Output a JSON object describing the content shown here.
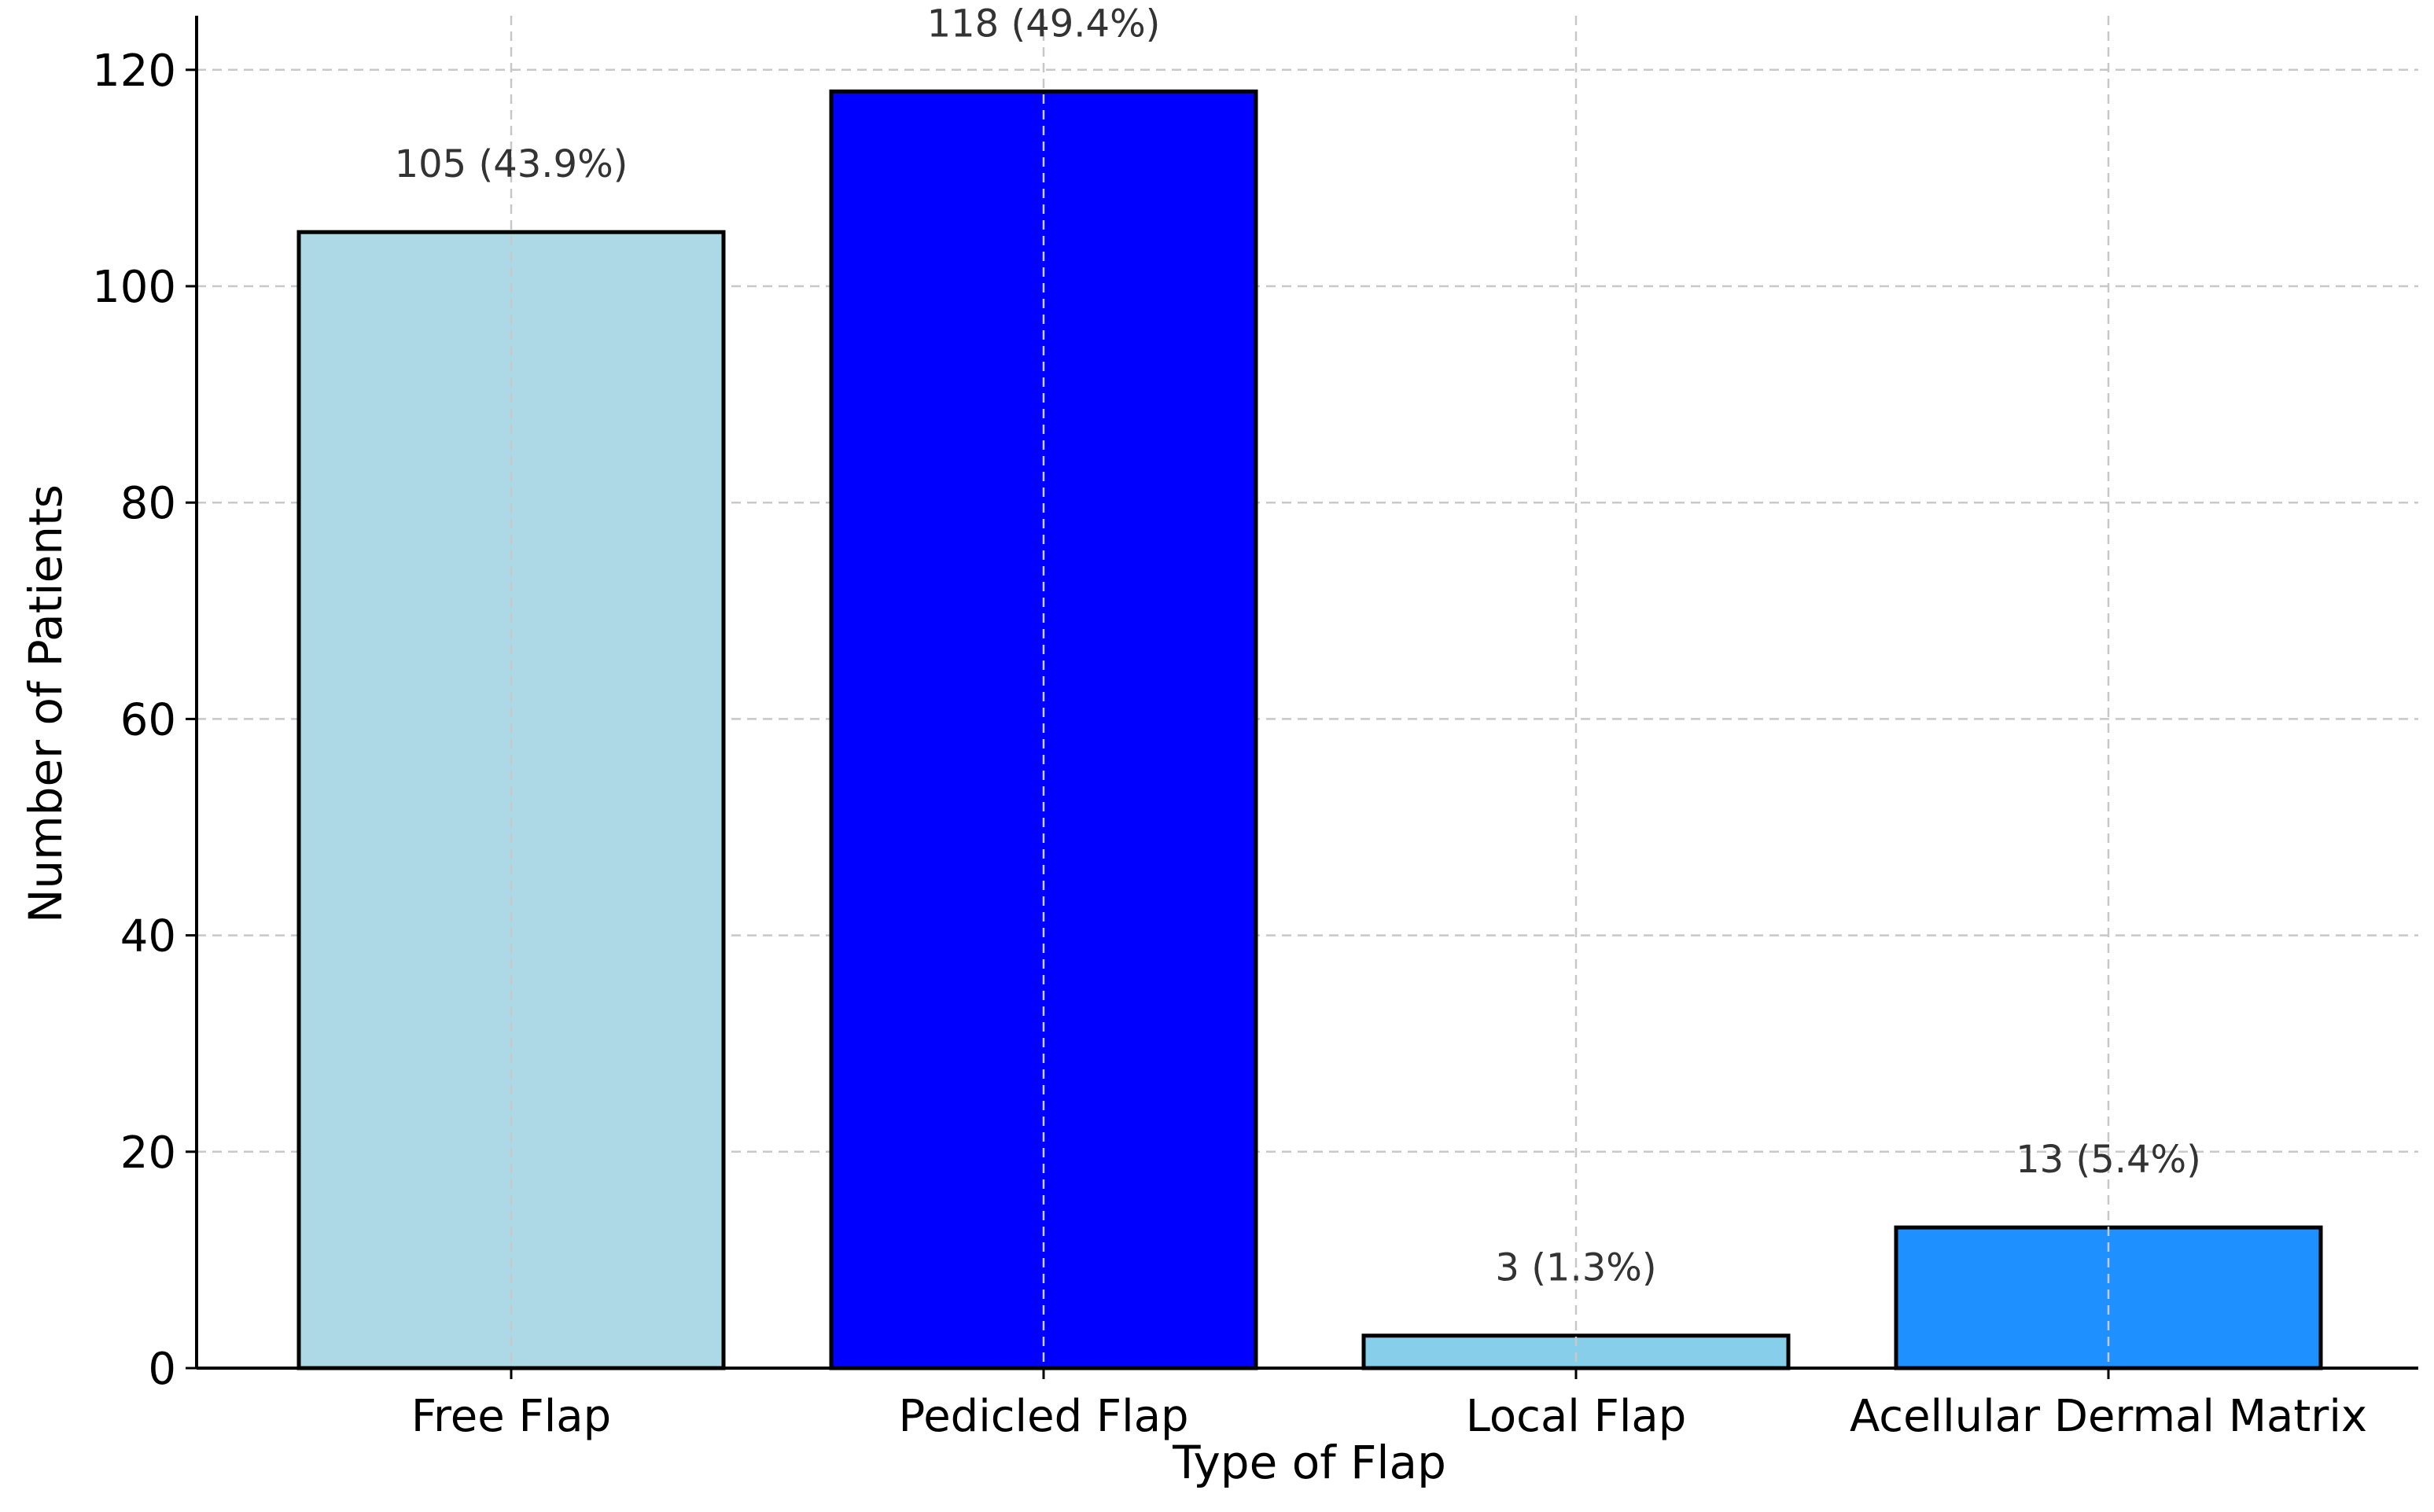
{
  "chart_data": {
    "type": "bar",
    "title": "",
    "xlabel": "Type of Flap",
    "ylabel": "Number of Patients",
    "categories": [
      "Free Flap",
      "Pedicled Flap",
      "Local Flap",
      "Acellular Dermal Matrix"
    ],
    "values": [
      105,
      118,
      3,
      13
    ],
    "data_labels": [
      "105 (43.9%)",
      "118 (49.4%)",
      "3 (1.3%)",
      "13 (5.4%)"
    ],
    "colors": [
      "#add8e6",
      "#0000ff",
      "#87ceeb",
      "#1e90ff"
    ],
    "ylim": [
      0,
      125
    ],
    "yticks": [
      0,
      20,
      40,
      60,
      80,
      100,
      120
    ],
    "grid": true,
    "legend": "none"
  }
}
